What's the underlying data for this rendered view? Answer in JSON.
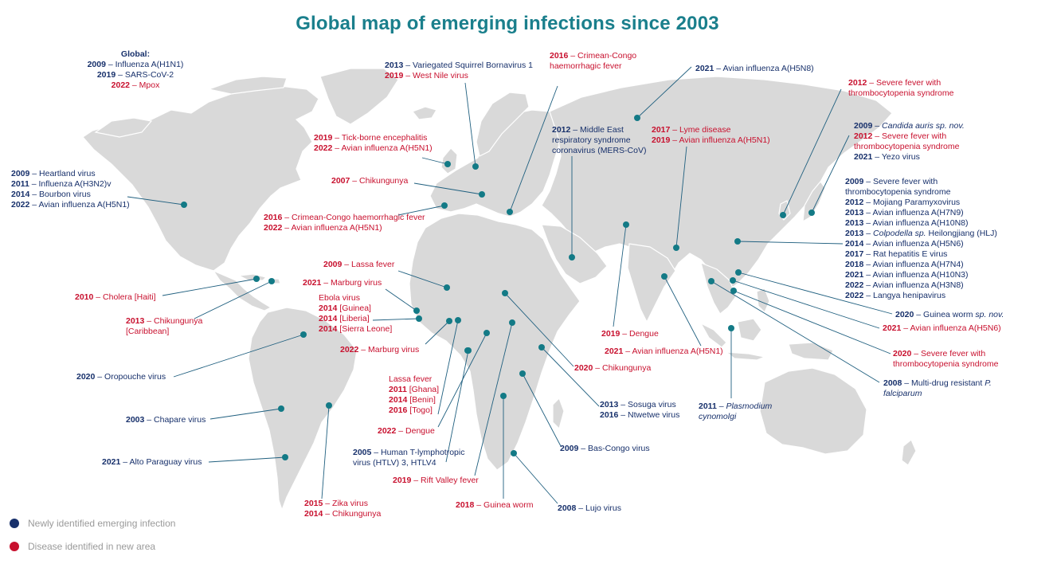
{
  "title": "Global map of emerging infections since 2003",
  "colors": {
    "new": "#17306b",
    "area": "#c8102e",
    "dot": "#137a86",
    "land": "#d9d9d9",
    "title": "#1a7f8c"
  },
  "legend": [
    {
      "label": "Newly identified emerging infection",
      "color": "#17306b"
    },
    {
      "label": "Disease identified in new area",
      "color": "#c8102e"
    }
  ],
  "annotations": [
    {
      "id": "global",
      "lines": [
        {
          "c": "new",
          "t": "Global:"
        },
        {
          "c": "new",
          "y": "2009",
          "t": " – Influenza A(H1N1)"
        },
        {
          "c": "new",
          "y": "2019",
          "t": " – SARS-CoV-2"
        },
        {
          "c": "area",
          "y": "2022",
          "t": " – Mpox"
        }
      ]
    },
    {
      "id": "usa",
      "lines": [
        {
          "c": "new",
          "y": "2009",
          "t": " – Heartland virus"
        },
        {
          "c": "new",
          "y": "2011",
          "t": " – Influenza A(H3N2)v"
        },
        {
          "c": "new",
          "y": "2014",
          "t": " – Bourbon virus"
        },
        {
          "c": "new",
          "y": "2022",
          "t": " – Avian influenza A(H5N1)"
        }
      ]
    },
    {
      "id": "haiti",
      "lines": [
        {
          "c": "area",
          "y": "2010",
          "t": " – Cholera [Haiti]"
        }
      ]
    },
    {
      "id": "caribbean",
      "lines": [
        {
          "c": "area",
          "y": "2013",
          "t": " – Chikungunya"
        },
        {
          "c": "area",
          "t": "[Caribbean]"
        }
      ]
    },
    {
      "id": "oropouche",
      "lines": [
        {
          "c": "new",
          "y": "2020",
          "t": " – Oropouche virus"
        }
      ]
    },
    {
      "id": "chapare",
      "lines": [
        {
          "c": "new",
          "y": "2003",
          "t": " – Chapare virus"
        }
      ]
    },
    {
      "id": "alto",
      "lines": [
        {
          "c": "new",
          "y": "2021",
          "t": " – Alto Paraguay virus"
        }
      ]
    },
    {
      "id": "zika",
      "lines": [
        {
          "c": "area",
          "y": "2015",
          "t": " – Zika virus"
        },
        {
          "c": "area",
          "y": "2014",
          "t": " – Chikungunya"
        }
      ]
    },
    {
      "id": "squirrel",
      "lines": [
        {
          "c": "new",
          "y": "2013",
          "t": " – Variegated Squirrel Bornavirus 1"
        },
        {
          "c": "area",
          "y": "2019",
          "t": " – West Nile virus"
        }
      ]
    },
    {
      "id": "cchf-2016",
      "lines": [
        {
          "c": "area",
          "y": "2016",
          "t": " – Crimean-Congo"
        },
        {
          "c": "area",
          "t": "haemorrhagic fever"
        }
      ]
    },
    {
      "id": "tbe",
      "lines": [
        {
          "c": "area",
          "y": "2019",
          "t": " – Tick-borne encephalitis"
        },
        {
          "c": "area",
          "y": "2022",
          "t": " – Avian influenza A(H5N1)"
        }
      ]
    },
    {
      "id": "chik-2007",
      "lines": [
        {
          "c": "area",
          "y": "2007",
          "t": " – Chikungunya"
        }
      ]
    },
    {
      "id": "spain",
      "lines": [
        {
          "c": "area",
          "y": "2016",
          "t": " – Crimean-Congo haemorrhagic fever"
        },
        {
          "c": "area",
          "y": "2022",
          "t": " – Avian influenza A(H5N1)"
        }
      ]
    },
    {
      "id": "lassa-2009",
      "lines": [
        {
          "c": "area",
          "y": "2009",
          "t": " – Lassa fever"
        }
      ]
    },
    {
      "id": "marburg-2021",
      "lines": [
        {
          "c": "area",
          "y": "2021",
          "t": " – Marburg virus"
        }
      ]
    },
    {
      "id": "ebola",
      "lines": [
        {
          "c": "area",
          "t": "Ebola virus"
        },
        {
          "c": "area",
          "y": "2014",
          "t": " [Guinea]"
        },
        {
          "c": "area",
          "y": "2014",
          "t": " [Liberia]"
        },
        {
          "c": "area",
          "y": "2014",
          "t": " [Sierra Leone]"
        }
      ]
    },
    {
      "id": "marburg-2022",
      "lines": [
        {
          "c": "area",
          "y": "2022",
          "t": " – Marburg virus"
        }
      ]
    },
    {
      "id": "lassa",
      "lines": [
        {
          "c": "area",
          "t": "Lassa fever"
        },
        {
          "c": "area",
          "y": "2011",
          "t": " [Ghana]"
        },
        {
          "c": "area",
          "y": "2014",
          "t": " [Benin]"
        },
        {
          "c": "area",
          "y": "2016",
          "t": " [Togo]"
        }
      ]
    },
    {
      "id": "dengue-2022",
      "lines": [
        {
          "c": "area",
          "y": "2022",
          "t": " – Dengue"
        }
      ]
    },
    {
      "id": "htlv",
      "lines": [
        {
          "c": "new",
          "y": "2005",
          "t": " – Human T-lymphotropic"
        },
        {
          "c": "new",
          "t": "virus (HTLV) 3, HTLV4"
        }
      ]
    },
    {
      "id": "rvf",
      "lines": [
        {
          "c": "area",
          "y": "2019",
          "t": " – Rift Valley fever"
        }
      ]
    },
    {
      "id": "guinea-worm-2018",
      "lines": [
        {
          "c": "area",
          "y": "2018",
          "t": " – Guinea worm"
        }
      ]
    },
    {
      "id": "lujo",
      "lines": [
        {
          "c": "new",
          "y": "2008",
          "t": " – Lujo virus"
        }
      ]
    },
    {
      "id": "bas-congo",
      "lines": [
        {
          "c": "new",
          "y": "2009",
          "t": " – Bas-Congo virus"
        }
      ]
    },
    {
      "id": "sosuga",
      "lines": [
        {
          "c": "new",
          "y": "2013",
          "t": " – Sosuga virus"
        },
        {
          "c": "new",
          "y": "2016",
          "t": " – Ntwetwe virus"
        }
      ]
    },
    {
      "id": "chik-2020",
      "lines": [
        {
          "c": "area",
          "y": "2020",
          "t": " – Chikungunya"
        }
      ]
    },
    {
      "id": "mers",
      "lines": [
        {
          "c": "new",
          "y": "2012",
          "t": " – Middle East"
        },
        {
          "c": "new",
          "t": "respiratory syndrome"
        },
        {
          "c": "new",
          "t": "coronavirus (MERS-CoV)"
        }
      ]
    },
    {
      "id": "h5n8",
      "lines": [
        {
          "c": "new",
          "y": "2021",
          "t": " – Avian influenza A(H5N8)"
        }
      ]
    },
    {
      "id": "lyme",
      "lines": [
        {
          "c": "area",
          "y": "2017",
          "t": " – Lyme disease"
        },
        {
          "c": "area",
          "y": "2019",
          "t": " – Avian influenza A(H5N1)"
        }
      ]
    },
    {
      "id": "dengue-2019",
      "lines": [
        {
          "c": "area",
          "y": "2019",
          "t": " – Dengue"
        }
      ]
    },
    {
      "id": "h5n1-2021",
      "lines": [
        {
          "c": "area",
          "y": "2021",
          "t": " – Avian influenza A(H5N1)"
        }
      ]
    },
    {
      "id": "plasmodium",
      "lines": [
        {
          "c": "new",
          "y": "2011",
          "t": " – ",
          "i": "Plasmodium"
        },
        {
          "c": "new",
          "i": "cynomolgi"
        }
      ]
    },
    {
      "id": "sfts-2012",
      "lines": [
        {
          "c": "area",
          "y": "2012",
          "t": " – Severe fever with"
        },
        {
          "c": "area",
          "t": "thrombocytopenia syndrome"
        }
      ]
    },
    {
      "id": "japan",
      "lines": [
        {
          "c": "new",
          "y": "2009",
          "t": " – ",
          "i": "Candida auris sp. nov."
        },
        {
          "c": "area",
          "y": "2012",
          "t": " – Severe fever with"
        },
        {
          "c": "area",
          "t": "thrombocytopenia syndrome"
        },
        {
          "c": "new",
          "y": "2021",
          "t": " – Yezo virus"
        }
      ]
    },
    {
      "id": "china",
      "lines": [
        {
          "c": "new",
          "y": "2009",
          "t": " – Severe fever with"
        },
        {
          "c": "new",
          "t": "thrombocytopenia syndrome"
        },
        {
          "c": "new",
          "y": "2012",
          "t": " – Mojiang Paramyxovirus"
        },
        {
          "c": "new",
          "y": "2013",
          "t": " – Avian influenza A(H7N9)"
        },
        {
          "c": "new",
          "y": "2013",
          "t": " – Avian influenza A(H10N8)"
        },
        {
          "c": "new",
          "y": "2013",
          "t": " – ",
          "i": "Colpodella sp.",
          "t2": " Heilongjiang (HLJ)"
        },
        {
          "c": "new",
          "y": "2014",
          "t": " – Avian influenza A(H5N6)"
        },
        {
          "c": "new",
          "y": "2017",
          "t": " – Rat hepatitis E virus"
        },
        {
          "c": "new",
          "y": "2018",
          "t": " – Avian influenza A(H7N4)"
        },
        {
          "c": "new",
          "y": "2021",
          "t": " – Avian influenza A(H10N3)"
        },
        {
          "c": "new",
          "y": "2022",
          "t": " – Avian influenza A(H3N8)"
        },
        {
          "c": "new",
          "y": "2022",
          "t": " – Langya henipavirus"
        }
      ]
    },
    {
      "id": "guinea-worm-2020",
      "lines": [
        {
          "c": "new",
          "y": "2020",
          "t": " – Guinea worm ",
          "i": "sp. nov."
        }
      ]
    },
    {
      "id": "h5n6-2021",
      "lines": [
        {
          "c": "area",
          "y": "2021",
          "t": " – Avian influenza A(H5N6)"
        }
      ]
    },
    {
      "id": "sfts-2020",
      "lines": [
        {
          "c": "area",
          "y": "2020",
          "t": " – Severe fever with"
        },
        {
          "c": "area",
          "t": "thrombocytopenia syndrome"
        }
      ]
    },
    {
      "id": "mdr",
      "lines": [
        {
          "c": "new",
          "y": "2008",
          "t": " – Multi-drug resistant ",
          "i": "P."
        },
        {
          "c": "new",
          "i": "falciparum"
        }
      ]
    }
  ]
}
